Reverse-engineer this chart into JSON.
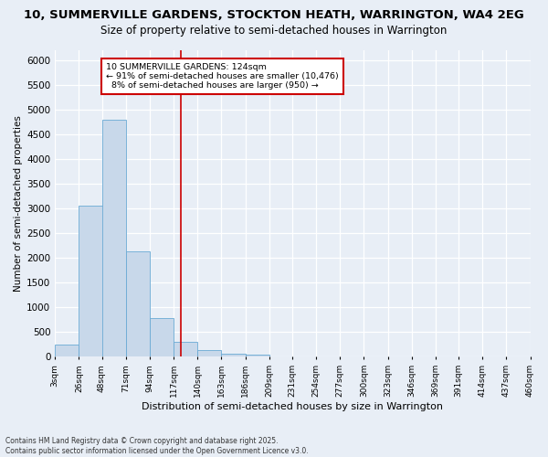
{
  "title": "10, SUMMERVILLE GARDENS, STOCKTON HEATH, WARRINGTON, WA4 2EG",
  "subtitle": "Size of property relative to semi-detached houses in Warrington",
  "xlabel": "Distribution of semi-detached houses by size in Warrington",
  "ylabel": "Number of semi-detached properties",
  "footnote": "Contains HM Land Registry data © Crown copyright and database right 2025.\nContains public sector information licensed under the Open Government Licence v3.0.",
  "bin_labels": [
    "3sqm",
    "26sqm",
    "48sqm",
    "71sqm",
    "94sqm",
    "117sqm",
    "140sqm",
    "163sqm",
    "186sqm",
    "209sqm",
    "231sqm",
    "254sqm",
    "277sqm",
    "300sqm",
    "323sqm",
    "346sqm",
    "369sqm",
    "391sqm",
    "414sqm",
    "437sqm",
    "460sqm"
  ],
  "bin_edges": [
    3,
    26,
    48,
    71,
    94,
    117,
    140,
    163,
    186,
    209,
    231,
    254,
    277,
    300,
    323,
    346,
    369,
    391,
    414,
    437,
    460
  ],
  "bar_values": [
    240,
    3050,
    4800,
    2130,
    780,
    310,
    145,
    70,
    45,
    0,
    0,
    0,
    0,
    0,
    0,
    0,
    0,
    0,
    0,
    0
  ],
  "bar_color": "#c8d8ea",
  "bar_edge_color": "#6aaad4",
  "property_size": 124,
  "property_label": "10 SUMMERVILLE GARDENS: 124sqm",
  "pct_smaller": 91,
  "n_smaller": 10476,
  "pct_larger": 8,
  "n_larger": 950,
  "vline_color": "#cc0000",
  "annotation_box_color": "#cc0000",
  "ylim": [
    0,
    6200
  ],
  "yticks": [
    0,
    500,
    1000,
    1500,
    2000,
    2500,
    3000,
    3500,
    4000,
    4500,
    5000,
    5500,
    6000
  ],
  "bg_color": "#e8eef6",
  "fig_bg_color": "#e8eef6",
  "grid_color": "#ffffff",
  "title_fontsize": 9.5,
  "subtitle_fontsize": 8.5
}
